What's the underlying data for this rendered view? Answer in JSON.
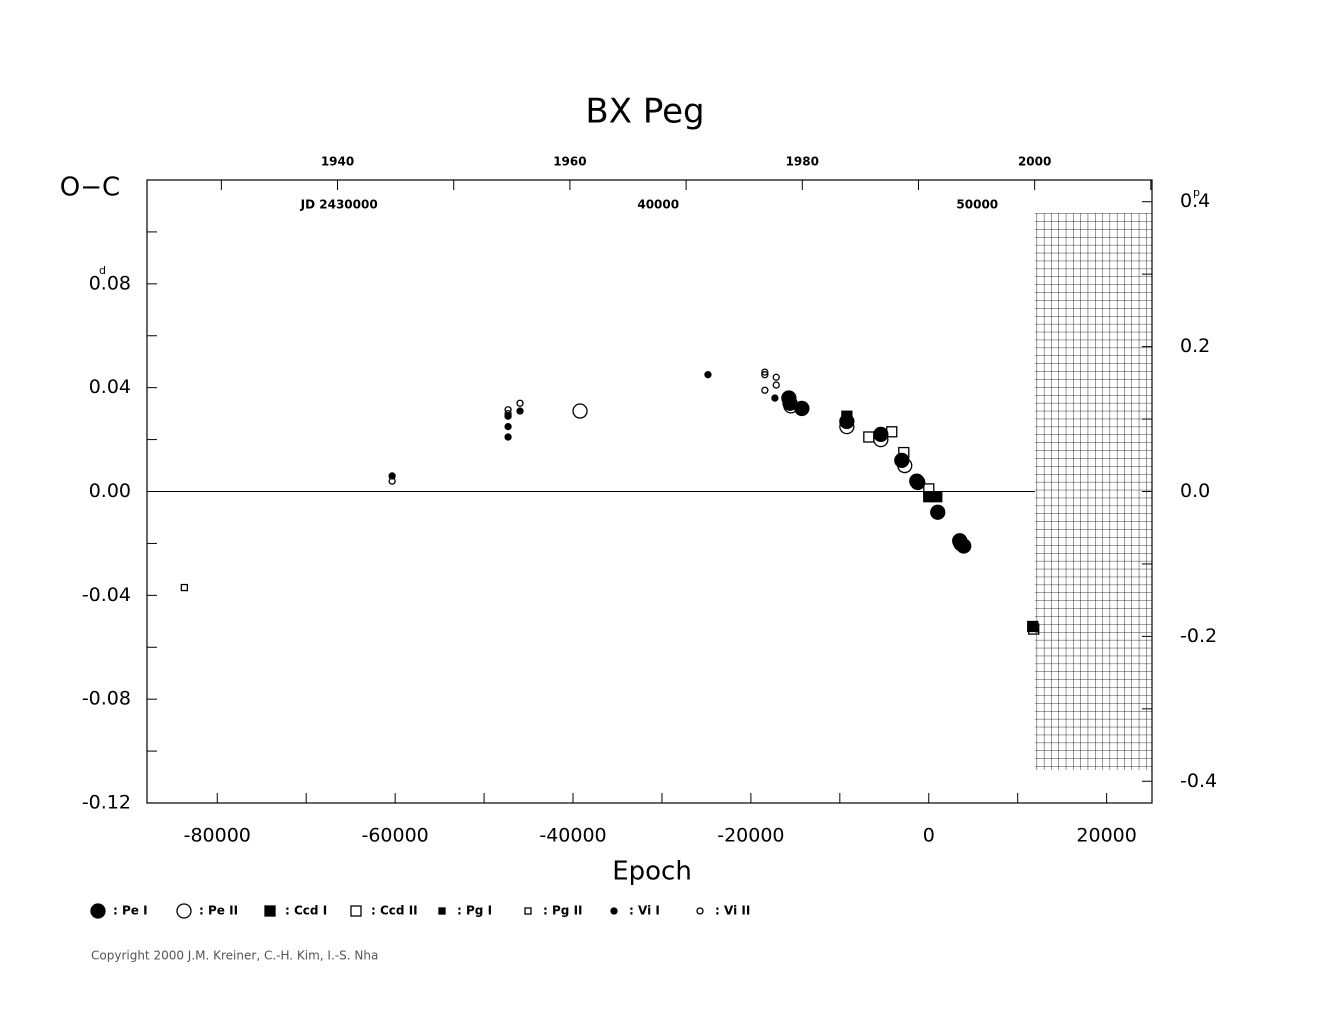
{
  "chart_data": {
    "type": "scatter",
    "title": "BX Peg",
    "x_label": "Epoch",
    "y_label": "O−C",
    "y_unit": "d",
    "y2_unit": "p",
    "xlim": [
      -87900,
      25100
    ],
    "ylim": [
      -0.12,
      0.12
    ],
    "y2lim": [
      -0.43,
      0.43
    ],
    "xticks": [
      -80000,
      -60000,
      -40000,
      -20000,
      0,
      20000
    ],
    "xminor": [
      -70000,
      -50000,
      -30000,
      -10000,
      10000
    ],
    "yticks": [
      -0.12,
      -0.08,
      -0.04,
      {
        "value": 0,
        "label": "0.00"
      },
      0.04,
      0.08
    ],
    "yminor": [
      -0.1,
      -0.06,
      -0.02,
      0.02,
      0.06,
      0.1
    ],
    "y2ticks": [
      -0.4,
      -0.2,
      {
        "value": 0,
        "label": "0.0"
      },
      0.2,
      0.4
    ],
    "y2minor": [
      -0.3,
      -0.1,
      0.1,
      0.3
    ],
    "x2lim": [
      1923.6,
      2010.1
    ],
    "x2ticks": [
      1940,
      1960,
      1980,
      2000
    ],
    "x2minor": [
      1930,
      1950,
      1970,
      1990,
      2010
    ],
    "jdlim": [
      2423600,
      2455100
    ],
    "jdticks": [
      {
        "value": 2430000,
        "label": "JD 2430000"
      },
      {
        "value": 2440000,
        "label": "40000"
      },
      {
        "value": 2450000,
        "label": "50000"
      }
    ],
    "zero_line": true,
    "legend_separator": ":",
    "series": [
      {
        "name": "Pe I",
        "color": "#000000",
        "marker": "circle",
        "filled": true,
        "size": 7,
        "x": [
          -15730,
          -15600,
          -14270,
          -9210,
          -5390,
          -3030,
          -1350,
          -1240,
          1010,
          3480,
          3930
        ],
        "values": [
          0.036,
          0.034,
          0.032,
          0.027,
          0.022,
          0.012,
          0.004,
          0.0035,
          -0.008,
          -0.019,
          -0.021
        ]
      },
      {
        "name": "Pe II",
        "color": "#000000",
        "marker": "circle",
        "filled": false,
        "size": 7,
        "x": [
          -39210,
          -15500,
          -9210,
          -5390,
          -2700,
          3600
        ],
        "values": [
          0.031,
          0.033,
          0.025,
          0.02,
          0.01,
          -0.02
        ]
      },
      {
        "name": "Ccd I",
        "color": "#000000",
        "marker": "square",
        "filled": true,
        "size": 10,
        "x": [
          -9210,
          0,
          900,
          11690
        ],
        "values": [
          0.029,
          -0.002,
          -0.002,
          -0.052
        ]
      },
      {
        "name": "Ccd II",
        "color": "#000000",
        "marker": "square",
        "filled": false,
        "size": 10,
        "x": [
          -6740,
          -4160,
          -2810,
          0,
          11800
        ],
        "values": [
          0.021,
          0.023,
          0.015,
          0.001,
          -0.053
        ]
      },
      {
        "name": "Pg I",
        "color": "#000000",
        "marker": "square",
        "filled": true,
        "size": 6,
        "x": [],
        "values": []
      },
      {
        "name": "Pg II",
        "color": "#000000",
        "marker": "square",
        "filled": false,
        "size": 6,
        "x": [
          -83700
        ],
        "values": [
          -0.037
        ]
      },
      {
        "name": "Vi I",
        "color": "#000000",
        "marker": "circle",
        "filled": true,
        "size": 3,
        "x": [
          -60340,
          -47300,
          -47300,
          -47300,
          -45960,
          -24830,
          -17300
        ],
        "values": [
          0.006,
          0.029,
          0.025,
          0.021,
          0.031,
          0.045,
          0.036
        ]
      },
      {
        "name": "Vi II",
        "color": "#000000",
        "marker": "circle",
        "filled": false,
        "size": 3,
        "x": [
          -60340,
          -47300,
          -47300,
          -45960,
          -18430,
          -18430,
          -18430,
          -17150,
          -17150
        ],
        "values": [
          0.004,
          0.0315,
          0.03,
          0.034,
          0.046,
          0.045,
          0.039,
          0.044,
          0.041
        ]
      }
    ]
  },
  "footer": {
    "copyright": "Copyright 2000 J.M. Kreiner, C.-H. Kim, I.-S. Nha"
  }
}
